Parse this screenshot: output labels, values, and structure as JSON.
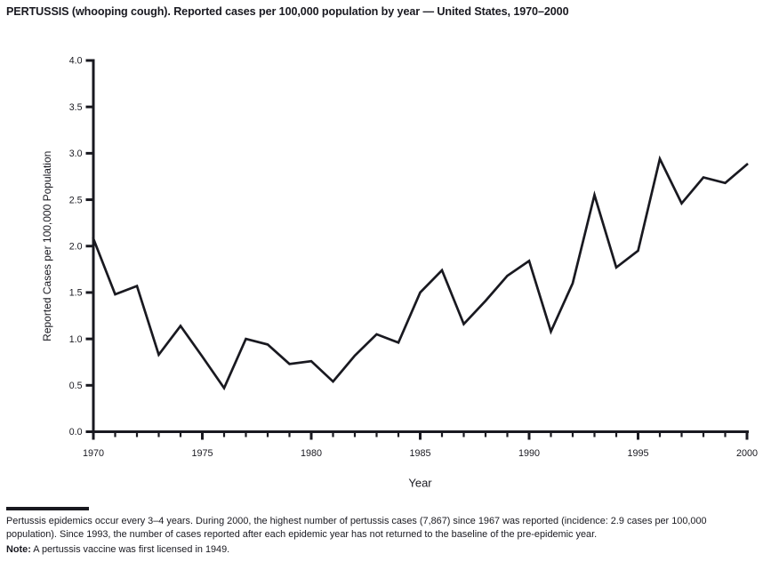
{
  "title": "PERTUSSIS (whooping cough). Reported cases per 100,000 population by year — United States, 1970–2000",
  "chart_data": {
    "type": "line",
    "title": "PERTUSSIS (whooping cough). Reported cases per 100,000 population by year — United States, 1970–2000",
    "xlabel": "Year",
    "ylabel": "Reported Cases per 100,000 Population",
    "x": [
      1970,
      1971,
      1972,
      1973,
      1974,
      1975,
      1976,
      1977,
      1978,
      1979,
      1980,
      1981,
      1982,
      1983,
      1984,
      1985,
      1986,
      1987,
      1988,
      1989,
      1990,
      1991,
      1992,
      1993,
      1994,
      1995,
      1996,
      1997,
      1998,
      1999,
      2000
    ],
    "values": [
      2.08,
      1.48,
      1.57,
      0.83,
      1.14,
      0.81,
      0.47,
      1.0,
      0.94,
      0.73,
      0.76,
      0.54,
      0.82,
      1.05,
      0.96,
      1.5,
      1.74,
      1.16,
      1.41,
      1.68,
      1.84,
      1.08,
      1.6,
      2.55,
      1.77,
      1.95,
      2.94,
      2.46,
      2.74,
      2.68,
      2.88
    ],
    "ylim": [
      0.0,
      4.0
    ],
    "ytick_step": 0.5,
    "ytick_labels": [
      "0.0",
      "0.5",
      "1.0",
      "1.5",
      "2.0",
      "2.5",
      "3.0",
      "3.5",
      "4.0"
    ],
    "xticks_labeled": [
      1970,
      1975,
      1980,
      1985,
      1990,
      1995,
      2000
    ],
    "xtick_minor_every": 1,
    "grid": false,
    "legend": "none",
    "line_color": "#191920",
    "axis_color": "#191920"
  },
  "footnote": {
    "paragraph": "Pertussis epidemics occur every 3–4 years. During 2000, the highest number of pertussis cases (7,867) since 1967 was reported (incidence: 2.9 cases per 100,000 population). Since 1993, the number of cases reported after each epidemic year has not returned to the baseline of the pre-epidemic year.",
    "note_label": "Note:",
    "note_text": " A pertussis vaccine was first licensed in 1949."
  }
}
